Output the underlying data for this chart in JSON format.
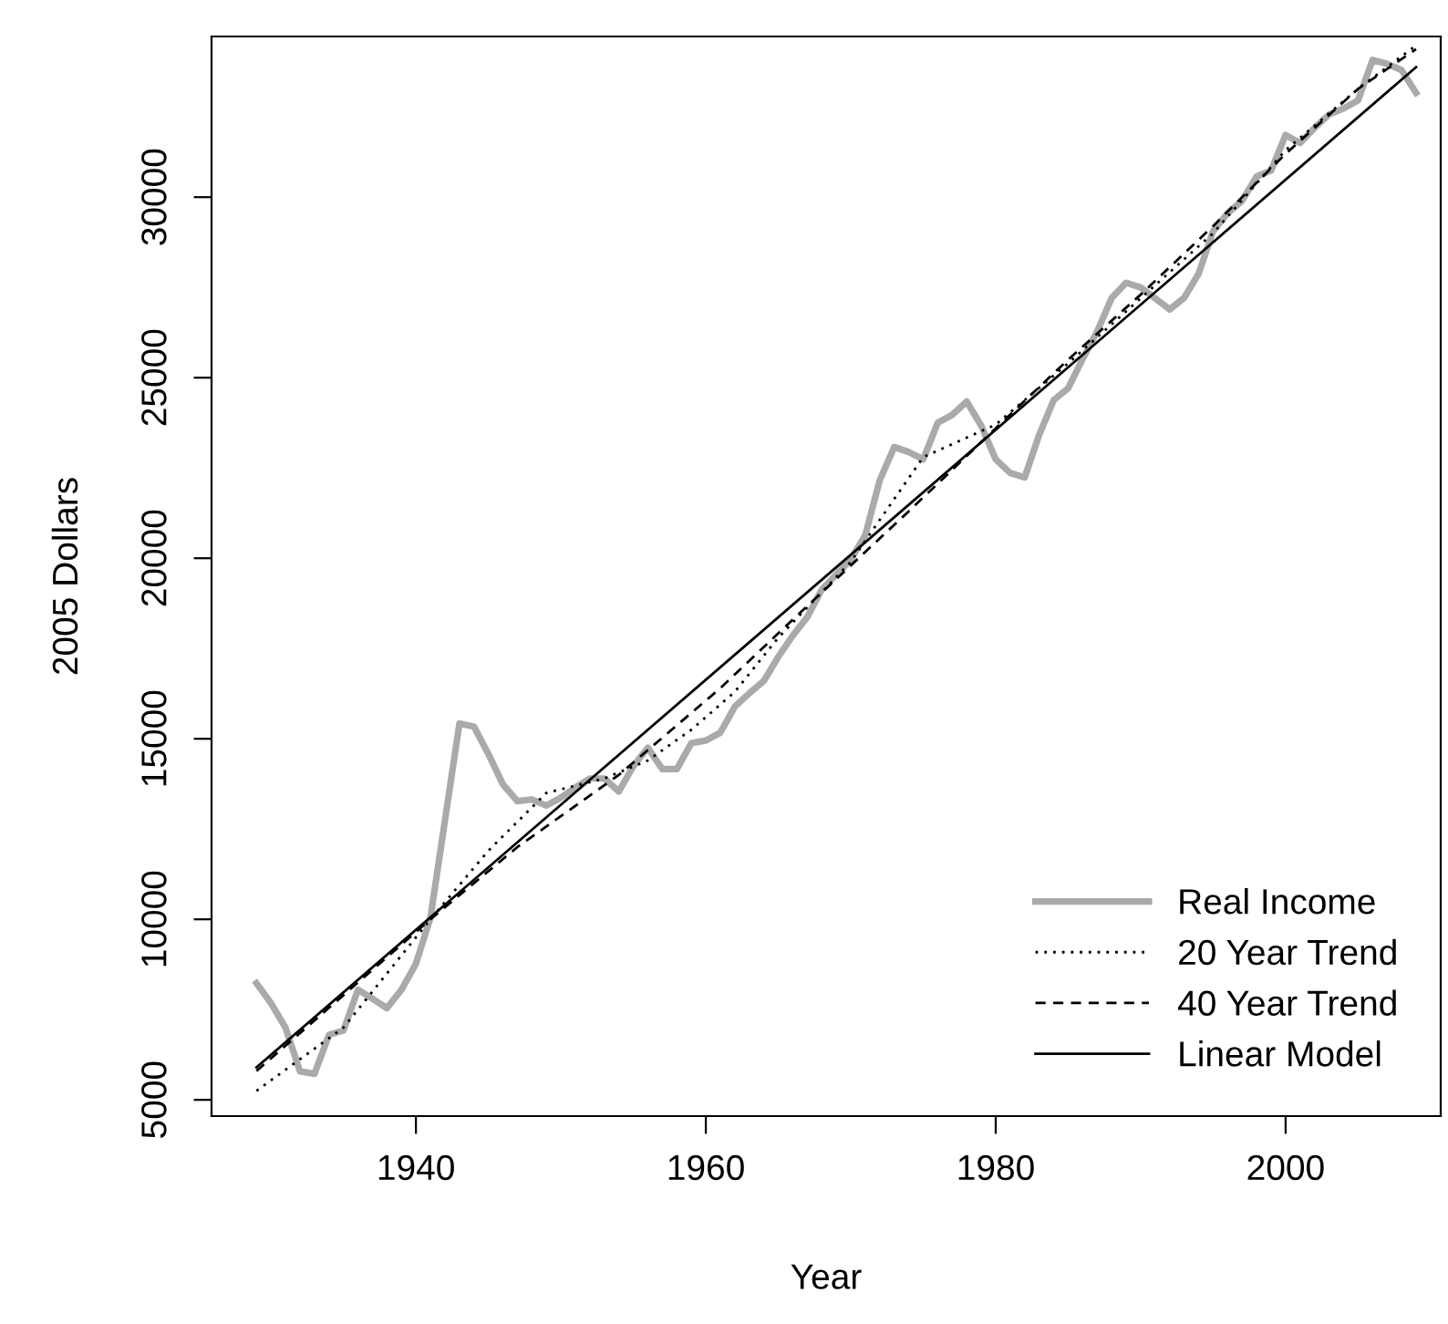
{
  "chart_data": {
    "type": "line",
    "xlabel": "Year",
    "ylabel": "2005 Dollars",
    "xlim": [
      1925.9,
      2010.7
    ],
    "ylim": [
      4550,
      34450
    ],
    "xticks": [
      1940,
      1960,
      1980,
      2000
    ],
    "yticks": [
      5000,
      10000,
      15000,
      20000,
      25000,
      30000
    ],
    "grid": false,
    "legend": "bottom right",
    "series": [
      {
        "name": "Real Income",
        "color": "#aaaaaa",
        "line_style": "solid",
        "x": [
          1929,
          1930,
          1931,
          1932,
          1933,
          1934,
          1935,
          1936,
          1937,
          1938,
          1939,
          1940,
          1941,
          1942,
          1943,
          1944,
          1945,
          1946,
          1947,
          1948,
          1949,
          1950,
          1951,
          1952,
          1953,
          1954,
          1955,
          1956,
          1957,
          1958,
          1959,
          1960,
          1961,
          1962,
          1963,
          1964,
          1965,
          1966,
          1967,
          1968,
          1969,
          1970,
          1971,
          1972,
          1973,
          1974,
          1975,
          1976,
          1977,
          1978,
          1979,
          1980,
          1981,
          1982,
          1983,
          1984,
          1985,
          1986,
          1987,
          1988,
          1989,
          1990,
          1991,
          1992,
          1993,
          1994,
          1995,
          1996,
          1997,
          1998,
          1999,
          2000,
          2001,
          2002,
          2003,
          2004,
          2005,
          2006,
          2007,
          2008,
          2009
        ],
        "values": [
          8230,
          7680,
          7000,
          5790,
          5720,
          6800,
          6920,
          8050,
          7800,
          7540,
          8050,
          8770,
          10040,
          12730,
          15420,
          15340,
          14580,
          13740,
          13270,
          13320,
          13150,
          13370,
          13650,
          13900,
          13900,
          13540,
          14240,
          14750,
          14160,
          14160,
          14880,
          14950,
          15170,
          15890,
          16260,
          16600,
          17270,
          17860,
          18370,
          19130,
          19550,
          19960,
          20640,
          22160,
          23080,
          22940,
          22740,
          23750,
          23970,
          24340,
          23670,
          22740,
          22360,
          22240,
          23420,
          24380,
          24710,
          25520,
          26280,
          27210,
          27630,
          27500,
          27200,
          26890,
          27210,
          27880,
          29060,
          29560,
          29900,
          30570,
          30740,
          31720,
          31500,
          31920,
          32290,
          32460,
          32680,
          33800,
          33690,
          33520,
          32890
        ]
      },
      {
        "name": "20 Year Trend",
        "color": "#000000",
        "line_style": "dotted",
        "x": [
          1929,
          1935,
          1941,
          1945,
          1949,
          1953,
          1956,
          1959,
          1962,
          1965,
          1970,
          1975,
          1980,
          1985,
          1990,
          1995,
          2000,
          2005,
          2009
        ],
        "values": [
          5250,
          7000,
          10000,
          11900,
          13500,
          13900,
          14400,
          15250,
          16300,
          17800,
          19900,
          22800,
          23700,
          25400,
          27200,
          29000,
          31300,
          33000,
          34200
        ]
      },
      {
        "name": "40 Year Trend",
        "color": "#000000",
        "line_style": "dashed",
        "x": [
          1929,
          1935,
          1941,
          1947,
          1954,
          1961,
          1966,
          1970,
          1974,
          1980,
          1985,
          1990,
          1995,
          2000,
          2005,
          2009
        ],
        "values": [
          5800,
          7900,
          10000,
          12000,
          14000,
          16400,
          18300,
          19800,
          21300,
          23600,
          25500,
          27300,
          29200,
          31200,
          33000,
          34100
        ]
      },
      {
        "name": "Linear Model",
        "color": "#000000",
        "line_style": "solid",
        "x": [
          1929,
          2009
        ],
        "values": [
          5900,
          33600
        ]
      }
    ]
  }
}
